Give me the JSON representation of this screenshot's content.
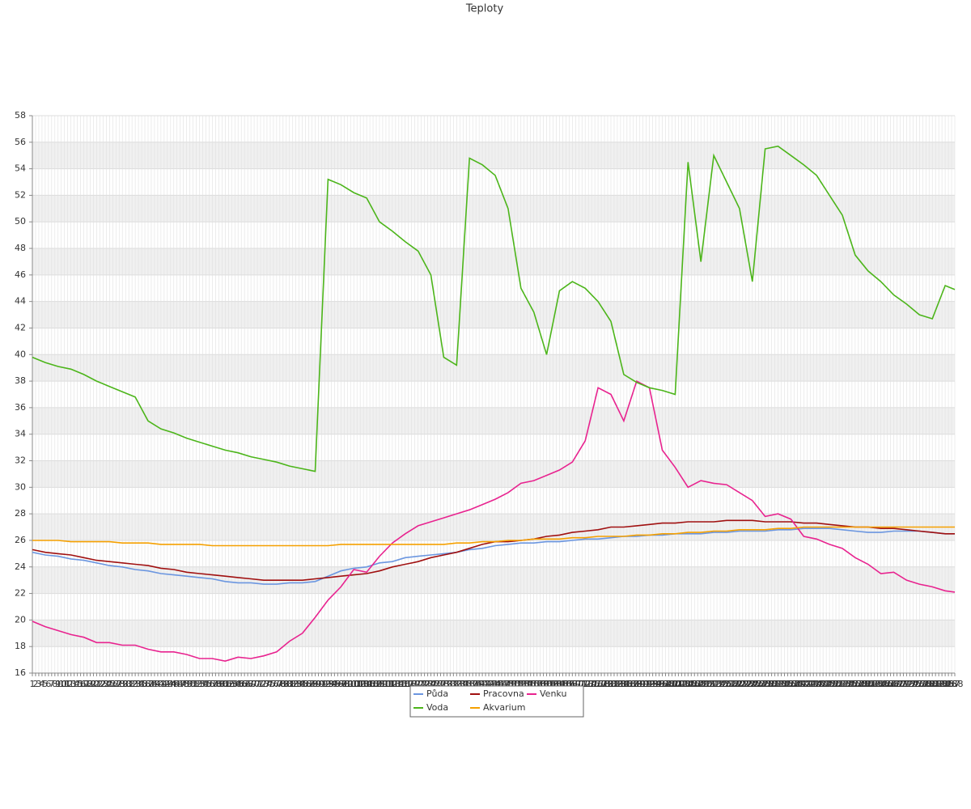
{
  "chart_data": {
    "type": "line",
    "title": "Teploty",
    "x": [
      1,
      5,
      9,
      13,
      17,
      21,
      25,
      29,
      33,
      37,
      41,
      45,
      49,
      53,
      57,
      61,
      65,
      69,
      73,
      77,
      81,
      85,
      89,
      93,
      97,
      101,
      105,
      109,
      113,
      117,
      121,
      125,
      129,
      133,
      137,
      141,
      145,
      149,
      153,
      157,
      161,
      165,
      169,
      173,
      177,
      181,
      185,
      189,
      193,
      197,
      201,
      205,
      209,
      213,
      217,
      221,
      225,
      229,
      233,
      237,
      241,
      245,
      249,
      253,
      257,
      261,
      265,
      269,
      273,
      277,
      281,
      285,
      288
    ],
    "series": [
      {
        "name": "Půda",
        "color": "#6b96e0",
        "values": [
          25.1,
          24.9,
          24.8,
          24.6,
          24.5,
          24.3,
          24.1,
          24.0,
          23.8,
          23.7,
          23.5,
          23.4,
          23.3,
          23.2,
          23.1,
          22.9,
          22.8,
          22.8,
          22.7,
          22.7,
          22.8,
          22.8,
          22.9,
          23.3,
          23.7,
          23.9,
          24.0,
          24.3,
          24.4,
          24.7,
          24.8,
          24.9,
          25.0,
          25.1,
          25.3,
          25.4,
          25.6,
          25.7,
          25.8,
          25.8,
          25.9,
          25.9,
          26.0,
          26.1,
          26.1,
          26.2,
          26.3,
          26.3,
          26.4,
          26.4,
          26.5,
          26.5,
          26.5,
          26.6,
          26.6,
          26.7,
          26.7,
          26.7,
          26.8,
          26.8,
          26.9,
          26.9,
          26.9,
          26.8,
          26.7,
          26.6,
          26.6,
          26.7,
          26.7,
          26.7,
          26.6,
          26.5,
          26.5
        ]
      },
      {
        "name": "Pracovna",
        "color": "#a01010",
        "values": [
          25.3,
          25.1,
          25.0,
          24.9,
          24.7,
          24.5,
          24.4,
          24.3,
          24.2,
          24.1,
          23.9,
          23.8,
          23.6,
          23.5,
          23.4,
          23.3,
          23.2,
          23.1,
          23.0,
          23.0,
          23.0,
          23.0,
          23.1,
          23.2,
          23.3,
          23.4,
          23.5,
          23.7,
          24.0,
          24.2,
          24.4,
          24.7,
          24.9,
          25.1,
          25.4,
          25.7,
          25.9,
          25.9,
          26.0,
          26.1,
          26.3,
          26.4,
          26.6,
          26.7,
          26.8,
          27.0,
          27.0,
          27.1,
          27.2,
          27.3,
          27.3,
          27.4,
          27.4,
          27.4,
          27.5,
          27.5,
          27.5,
          27.4,
          27.4,
          27.4,
          27.3,
          27.3,
          27.2,
          27.1,
          27.0,
          27.0,
          26.9,
          26.9,
          26.8,
          26.7,
          26.6,
          26.5,
          26.5
        ]
      },
      {
        "name": "Venku",
        "color": "#e8238f",
        "values": [
          19.9,
          19.5,
          19.2,
          18.9,
          18.7,
          18.3,
          18.3,
          18.1,
          18.1,
          17.8,
          17.6,
          17.6,
          17.4,
          17.1,
          17.1,
          16.9,
          17.2,
          17.1,
          17.3,
          17.6,
          18.4,
          19.0,
          20.2,
          21.5,
          22.5,
          23.8,
          23.6,
          24.8,
          25.8,
          26.5,
          27.1,
          27.4,
          27.7,
          28.0,
          28.3,
          28.7,
          29.1,
          29.6,
          30.3,
          30.5,
          30.9,
          31.3,
          31.9,
          33.5,
          37.5,
          37.0,
          35.0,
          38.0,
          37.5,
          32.8,
          31.5,
          30.0,
          30.5,
          30.3,
          30.2,
          29.6,
          29.0,
          27.8,
          28.0,
          27.6,
          26.3,
          26.1,
          25.7,
          25.4,
          24.7,
          24.2,
          23.5,
          23.6,
          23.0,
          22.7,
          22.5,
          22.2,
          22.1
        ]
      },
      {
        "name": "Voda",
        "color": "#4cb51a",
        "values": [
          39.8,
          39.4,
          39.1,
          38.9,
          38.5,
          38.0,
          37.6,
          37.2,
          36.8,
          35.0,
          34.4,
          34.1,
          33.7,
          33.4,
          33.1,
          32.8,
          32.6,
          32.3,
          32.1,
          31.9,
          31.6,
          31.4,
          31.2,
          53.2,
          52.8,
          52.2,
          51.8,
          50.0,
          49.3,
          48.5,
          47.8,
          46.0,
          39.8,
          39.2,
          54.8,
          54.3,
          53.5,
          51.0,
          45.0,
          43.2,
          40.0,
          44.8,
          45.5,
          45.0,
          44.0,
          42.5,
          38.5,
          37.9,
          37.5,
          37.3,
          37.0,
          54.5,
          47.0,
          55.0,
          53.0,
          51.0,
          45.5,
          55.5,
          55.7,
          55.0,
          54.3,
          53.5,
          52.0,
          50.5,
          47.5,
          46.3,
          45.5,
          44.5,
          43.8,
          43.0,
          42.7,
          45.2,
          44.9
        ]
      },
      {
        "name": "Akvarium",
        "color": "#f5a000",
        "values": [
          26.0,
          26.0,
          26.0,
          25.9,
          25.9,
          25.9,
          25.9,
          25.8,
          25.8,
          25.8,
          25.7,
          25.7,
          25.7,
          25.7,
          25.6,
          25.6,
          25.6,
          25.6,
          25.6,
          25.6,
          25.6,
          25.6,
          25.6,
          25.6,
          25.7,
          25.7,
          25.7,
          25.7,
          25.7,
          25.7,
          25.7,
          25.7,
          25.7,
          25.8,
          25.8,
          25.9,
          25.9,
          26.0,
          26.0,
          26.1,
          26.1,
          26.1,
          26.2,
          26.2,
          26.3,
          26.3,
          26.3,
          26.4,
          26.4,
          26.5,
          26.5,
          26.6,
          26.6,
          26.7,
          26.7,
          26.8,
          26.8,
          26.8,
          26.9,
          26.9,
          27.0,
          27.0,
          27.0,
          27.0,
          27.0,
          27.0,
          27.0,
          27.0,
          27.0,
          27.0,
          27.0,
          27.0,
          27.0
        ]
      }
    ],
    "xlim": [
      1,
      288
    ],
    "xticks": [
      1,
      2,
      3,
      4,
      5,
      6,
      7,
      8,
      9,
      10,
      11,
      12,
      13,
      14,
      15,
      16,
      17,
      18,
      19,
      20,
      21,
      22,
      23,
      24,
      25,
      26,
      27,
      28,
      29,
      30,
      31,
      32,
      33,
      34,
      35,
      36,
      37,
      38,
      39,
      40,
      41,
      42,
      43,
      44,
      45,
      46,
      47,
      48,
      49,
      50,
      51,
      52,
      53,
      54,
      55,
      56,
      57,
      58,
      59,
      60,
      61,
      62,
      63,
      64,
      65,
      66,
      67,
      68,
      69,
      70,
      71,
      72,
      73,
      74,
      75,
      76,
      77,
      78,
      79,
      80,
      81,
      82,
      83,
      84,
      85,
      86,
      87,
      88,
      89,
      90,
      91,
      92,
      93,
      94,
      95,
      96,
      97,
      98,
      99,
      100,
      101,
      102,
      103,
      104,
      105,
      106,
      107,
      108,
      109,
      110,
      111,
      112,
      113,
      114,
      115,
      116,
      117,
      118,
      119,
      120,
      121,
      122,
      123,
      124,
      125,
      126,
      127,
      128,
      129,
      130,
      131,
      132,
      133,
      134,
      135,
      136,
      137,
      138,
      139,
      140,
      141,
      142,
      143,
      144,
      145,
      146,
      147,
      148,
      149,
      150,
      151,
      152,
      153,
      154,
      155,
      156,
      157,
      158,
      159,
      160,
      161,
      162,
      163,
      164,
      165,
      166,
      167,
      168,
      169,
      170,
      171,
      172,
      173,
      174,
      175,
      176,
      177,
      178,
      179,
      180,
      181,
      182,
      183,
      184,
      185,
      186,
      187,
      188,
      189,
      190,
      191,
      192,
      193,
      194,
      195,
      196,
      197,
      198,
      199,
      200,
      201,
      202,
      203,
      204,
      205,
      206,
      207,
      208,
      209,
      210,
      211,
      212,
      213,
      214,
      215,
      216,
      217,
      218,
      219,
      220,
      221,
      222,
      223,
      224,
      225,
      226,
      227,
      228,
      229,
      230,
      231,
      232,
      233,
      234,
      235,
      236,
      237,
      238,
      239,
      240,
      241,
      242,
      243,
      244,
      245,
      246,
      247,
      248,
      249,
      250,
      251,
      252,
      253,
      254,
      255,
      256,
      257,
      258,
      259,
      260,
      261,
      262,
      263,
      264,
      265,
      266,
      267,
      268,
      269,
      270,
      271,
      272,
      273,
      274,
      275,
      276,
      277,
      278,
      279,
      280,
      281,
      282,
      283,
      284,
      285,
      286,
      287,
      288
    ],
    "ylim": [
      16,
      58
    ],
    "yticks": [
      16,
      18,
      20,
      22,
      24,
      26,
      28,
      30,
      32,
      34,
      36,
      38,
      40,
      42,
      44,
      46,
      48,
      50,
      52,
      54,
      56,
      58
    ],
    "grid": true,
    "legend": "bottom"
  }
}
